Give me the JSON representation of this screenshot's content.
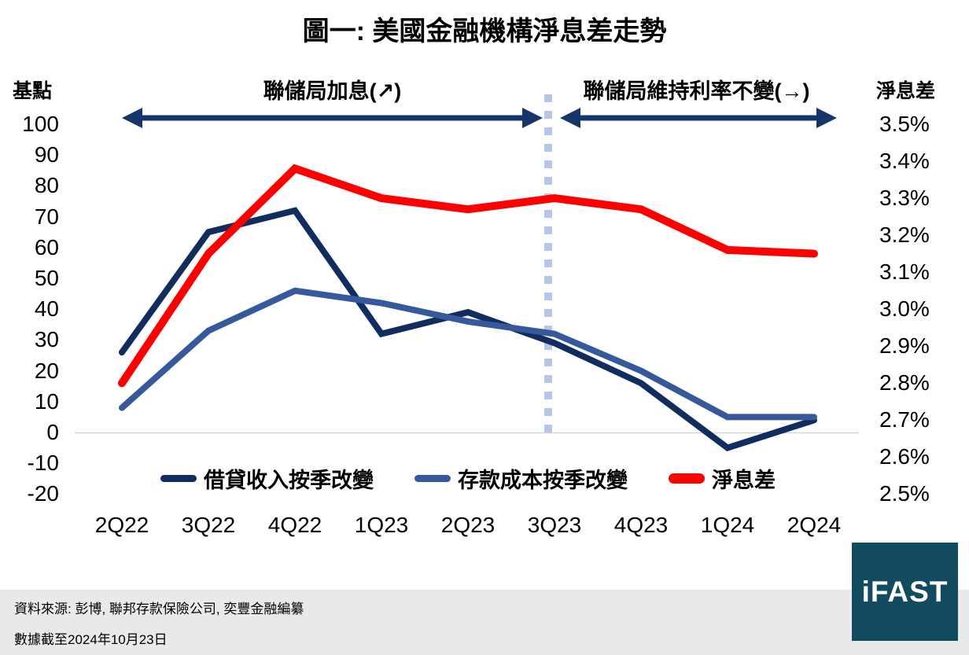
{
  "chart_data": {
    "type": "line",
    "title": "圖一: 美國金融機構淨息差走勢",
    "categories": [
      "2Q22",
      "3Q22",
      "4Q22",
      "1Q23",
      "2Q23",
      "3Q23",
      "4Q23",
      "1Q24",
      "2Q24"
    ],
    "left_axis": {
      "label": "基點",
      "min": -20,
      "max": 100,
      "ticks": [
        "100",
        "90",
        "80",
        "70",
        "60",
        "50",
        "40",
        "30",
        "20",
        "10",
        "0",
        "-10",
        "-20"
      ],
      "tick_values": [
        100,
        90,
        80,
        70,
        60,
        50,
        40,
        30,
        20,
        10,
        0,
        -10,
        -20
      ]
    },
    "right_axis": {
      "label": "淨息差",
      "min": 2.5,
      "max": 3.5,
      "ticks": [
        "3.5%",
        "3.4%",
        "3.3%",
        "3.2%",
        "3.1%",
        "3.0%",
        "2.9%",
        "2.8%",
        "2.7%",
        "2.6%",
        "2.5%"
      ],
      "tick_values": [
        3.5,
        3.4,
        3.3,
        3.2,
        3.1,
        3.0,
        2.9,
        2.8,
        2.7,
        2.6,
        2.5
      ]
    },
    "series": [
      {
        "name": "借貸收入按季改變",
        "axis": "left",
        "color": "#112C5F",
        "width": 8,
        "values": [
          26,
          65,
          72,
          32,
          39,
          29,
          16,
          -5,
          4
        ]
      },
      {
        "name": "存款成本按季改變",
        "axis": "left",
        "color": "#35599B",
        "width": 8,
        "values": [
          8,
          33,
          46,
          42,
          36,
          32,
          20,
          5,
          5
        ]
      },
      {
        "name": "淨息差",
        "axis": "right",
        "color": "#FE0000",
        "width": 10,
        "values": [
          2.8,
          3.15,
          3.38,
          3.3,
          3.27,
          3.3,
          3.27,
          3.16,
          3.15
        ]
      }
    ],
    "annotations": [
      {
        "text": "聯儲局加息(↗)",
        "side": "left"
      },
      {
        "text": "聯儲局維持利率不變(→)",
        "side": "right"
      }
    ],
    "divider_at_category": "3Q23",
    "grid": "zero-line-only",
    "legend_position": "bottom"
  },
  "colors": {
    "navy": "#112C5F",
    "blue": "#35599B",
    "red": "#FE0000",
    "annotation": "#16356B",
    "divider": "#B7C6E6",
    "gridline": "#D6D6D6",
    "footer_bg": "#E9E9E9",
    "logo_bg": "#124A60"
  },
  "footer": {
    "source_line": "資料來源: 彭博, 聯邦存款保險公司, 奕豐金融編纂",
    "date_line": "數據截至2024年10月23日"
  },
  "logo": {
    "text": "iFAST"
  }
}
